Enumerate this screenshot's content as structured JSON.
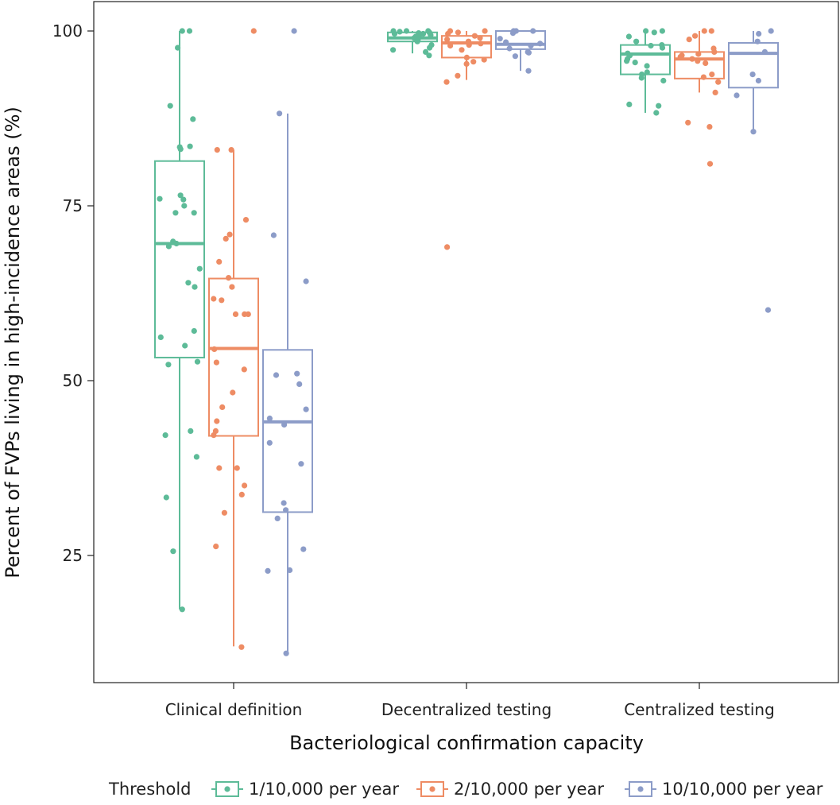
{
  "chart_data": {
    "type": "boxplot",
    "title": "",
    "xlabel": "Bacteriological confirmation capacity",
    "ylabel": "Percent of FVPs living in high-incidence areas (%)",
    "ylim": [
      10,
      104
    ],
    "yticks": [
      25,
      50,
      75,
      100
    ],
    "categories": [
      "Clinical definition",
      "Decentralized testing",
      "Centralized testing"
    ],
    "legend": {
      "title": "Threshold",
      "position": "bottom"
    },
    "series": [
      {
        "name": "1/10,000 per year",
        "color": "#5dbb98",
        "boxes": [
          {
            "min": 17.3,
            "q1": 53.3,
            "median": 69.6,
            "q3": 81.4,
            "max": 100,
            "points": [
              100,
              100,
              97.6,
              89.3,
              87.4,
              83.5,
              83.4,
              83.1,
              76.5,
              76.0,
              75.9,
              75.0,
              74.0,
              74.0,
              69.9,
              69.6,
              69.2,
              66.0,
              64.0,
              63.4,
              57.1,
              56.2,
              55.0,
              52.7,
              52.3,
              42.8,
              42.2,
              39.1,
              33.3,
              25.6,
              17.3
            ]
          },
          {
            "min": 96.8,
            "q1": 98.5,
            "median": 99.0,
            "q3": 99.8,
            "max": 100,
            "points": [
              100,
              100,
              100,
              99.9,
              99.8,
              99.7,
              99.6,
              99.6,
              99.5,
              99.4,
              99.2,
              99.0,
              98.8,
              98.5,
              98.0,
              97.6,
              97.3,
              97.0,
              96.5
            ]
          },
          {
            "min": 88.3,
            "q1": 93.8,
            "median": 96.7,
            "q3": 98.0,
            "max": 100,
            "points": [
              100,
              100,
              99.8,
              99.2,
              98.5,
              98.0,
              97.9,
              97.6,
              96.8,
              96.5,
              96.0,
              95.7,
              95.5,
              95.0,
              94.1,
              93.8,
              93.3,
              92.9,
              89.5,
              89.3,
              88.3
            ]
          }
        ]
      },
      {
        "name": "2/10,000 per year",
        "color": "#ee8c64",
        "boxes": [
          {
            "min": 12.0,
            "q1": 42.1,
            "median": 54.6,
            "q3": 64.6,
            "max": 83.0,
            "points": [
              100,
              83.0,
              83.0,
              73.0,
              70.9,
              70.3,
              67.0,
              64.7,
              63.4,
              61.7,
              61.5,
              59.5,
              59.5,
              59.5,
              54.5,
              52.6,
              51.6,
              48.3,
              46.2,
              44.2,
              42.8,
              42.2,
              37.5,
              37.5,
              35.0,
              33.7,
              31.1,
              26.3,
              11.9
            ]
          },
          {
            "min": 93.0,
            "q1": 96.2,
            "median": 98.3,
            "q3": 99.3,
            "max": 100,
            "points": [
              100,
              100,
              99.8,
              99.6,
              99.3,
              99.0,
              98.8,
              98.5,
              98.2,
              98.0,
              97.9,
              97.3,
              96.2,
              95.9,
              95.6,
              95.3,
              93.6,
              92.7,
              69.1
            ]
          },
          {
            "min": 91.2,
            "q1": 93.2,
            "median": 96.0,
            "q3": 97.0,
            "max": 100,
            "points": [
              100,
              100,
              99.3,
              98.8,
              97.5,
              97.0,
              96.7,
              96.5,
              96.3,
              96.0,
              95.7,
              95.4,
              93.8,
              93.4,
              92.7,
              91.2,
              86.9,
              86.3,
              81.0
            ]
          }
        ]
      },
      {
        "name": "10/10,000 per year",
        "color": "#8c9cc8",
        "boxes": [
          {
            "min": 11.2,
            "q1": 31.2,
            "median": 44.1,
            "q3": 54.4,
            "max": 88.2,
            "points": [
              100,
              88.2,
              70.8,
              64.2,
              51.0,
              50.8,
              49.5,
              45.9,
              44.6,
              43.7,
              41.1,
              38.1,
              32.5,
              31.5,
              30.3,
              25.9,
              22.9,
              22.8,
              11.0
            ]
          },
          {
            "min": 94.3,
            "q1": 97.4,
            "median": 98.1,
            "q3": 100,
            "max": 100,
            "points": [
              100,
              100,
              100,
              99.7,
              98.9,
              98.4,
              98.2,
              97.9,
              97.5,
              97.0,
              96.9,
              96.4,
              94.3
            ]
          },
          {
            "min": 85.7,
            "q1": 91.9,
            "median": 96.8,
            "q3": 98.3,
            "max": 100,
            "points": [
              100,
              99.6,
              98.5,
              97.0,
              93.8,
              92.9,
              90.8,
              85.6,
              60.1
            ]
          }
        ]
      }
    ]
  }
}
